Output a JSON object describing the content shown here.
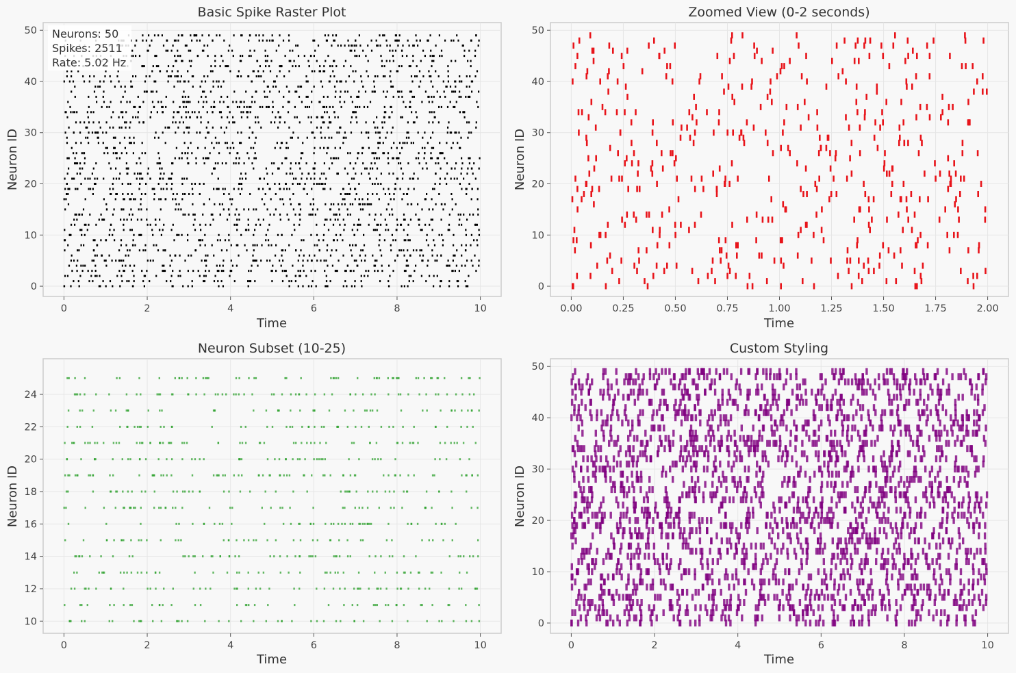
{
  "chart_data": [
    {
      "type": "raster",
      "title": "Basic Spike Raster Plot",
      "xlabel": "Time",
      "ylabel": "Neuron ID",
      "xlim": [
        -0.5,
        10.5
      ],
      "ylim": [
        -2,
        51.5
      ],
      "xticks": [
        0,
        2,
        4,
        6,
        8,
        10
      ],
      "yticks": [
        0,
        10,
        20,
        30,
        40,
        50
      ],
      "grid": true,
      "color": "#000000",
      "neurons": [
        0,
        49
      ],
      "time_range": [
        0,
        10
      ],
      "info_lines": [
        "Neurons: 50",
        "Spikes: 2511",
        "Rate: 5.02 Hz"
      ]
    },
    {
      "type": "raster",
      "title": "Zoomed View (0-2 seconds)",
      "xlabel": "Time",
      "ylabel": "Neuron ID",
      "xlim": [
        -0.1,
        2.1
      ],
      "ylim": [
        -2,
        51.5
      ],
      "xticks": [
        "0.00",
        "0.25",
        "0.50",
        "0.75",
        "1.00",
        "1.25",
        "1.50",
        "1.75",
        "2.00"
      ],
      "yticks": [
        0,
        10,
        20,
        30,
        40,
        50
      ],
      "grid": true,
      "color": "#e8141a",
      "neurons": [
        0,
        49
      ],
      "time_range": [
        0,
        2
      ]
    },
    {
      "type": "raster",
      "title": "Neuron Subset (10-25)",
      "xlabel": "Time",
      "ylabel": "Neuron ID",
      "xlim": [
        -0.5,
        10.5
      ],
      "ylim": [
        9.25,
        26.2
      ],
      "xticks": [
        0,
        2,
        4,
        6,
        8,
        10
      ],
      "yticks": [
        10,
        12,
        14,
        16,
        18,
        20,
        22,
        24
      ],
      "grid": true,
      "color": "#2ca02c",
      "neurons": [
        10,
        25
      ],
      "time_range": [
        0,
        10
      ]
    },
    {
      "type": "raster",
      "title": "Custom Styling",
      "xlabel": "Time",
      "ylabel": "Neuron ID",
      "xlim": [
        -0.5,
        10.5
      ],
      "ylim": [
        -2,
        51.5
      ],
      "xticks": [
        0,
        2,
        4,
        6,
        8,
        10
      ],
      "yticks": [
        0,
        10,
        20,
        30,
        40,
        50
      ],
      "grid": true,
      "color": "#800080",
      "neurons": [
        0,
        49
      ],
      "time_range": [
        0,
        10
      ]
    }
  ]
}
